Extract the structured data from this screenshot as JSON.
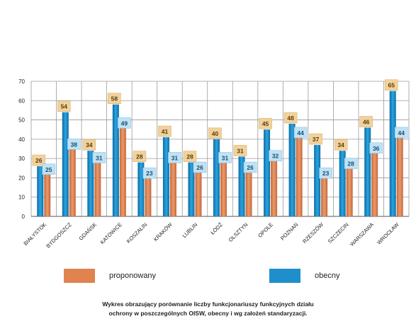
{
  "chart_data": {
    "type": "bar",
    "categories": [
      "BIAŁYSTOK",
      "BYDGOSZCZ",
      "GDAŃSK",
      "KATOWICE",
      "KOSZALIN",
      "KRAKÓW",
      "LUBLIN",
      "ŁÓDŹ",
      "OLSZTYN",
      "OPOLE",
      "POZNAŃ",
      "RZESZÓW",
      "SZCZECIN",
      "WARSZAWA",
      "WROCŁAW"
    ],
    "series": [
      {
        "name": "obecny",
        "color": "#1f8fcb",
        "values": [
          26,
          54,
          34,
          58,
          28,
          41,
          28,
          40,
          31,
          45,
          48,
          37,
          34,
          46,
          65
        ]
      },
      {
        "name": "proponowany",
        "color": "#e0834f",
        "values": [
          25,
          38,
          31,
          49,
          23,
          31,
          26,
          31,
          26,
          32,
          44,
          23,
          28,
          36,
          44
        ]
      }
    ],
    "ylim": [
      0,
      70
    ],
    "yticks": [
      0,
      10,
      20,
      30,
      40,
      50,
      60,
      70
    ],
    "grid": true,
    "legend_position": "bottom"
  },
  "legend": [
    {
      "label": "proponowany",
      "color": "#e0834f"
    },
    {
      "label": "obecny",
      "color": "#1f8fcb"
    }
  ],
  "caption": {
    "line1": "Wykres obrazujący porównanie liczby funkcjonariuszy funkcyjnych działu",
    "line2": "ochrony w poszczególnych OISW, obecny i wg założeń standaryzacji."
  }
}
